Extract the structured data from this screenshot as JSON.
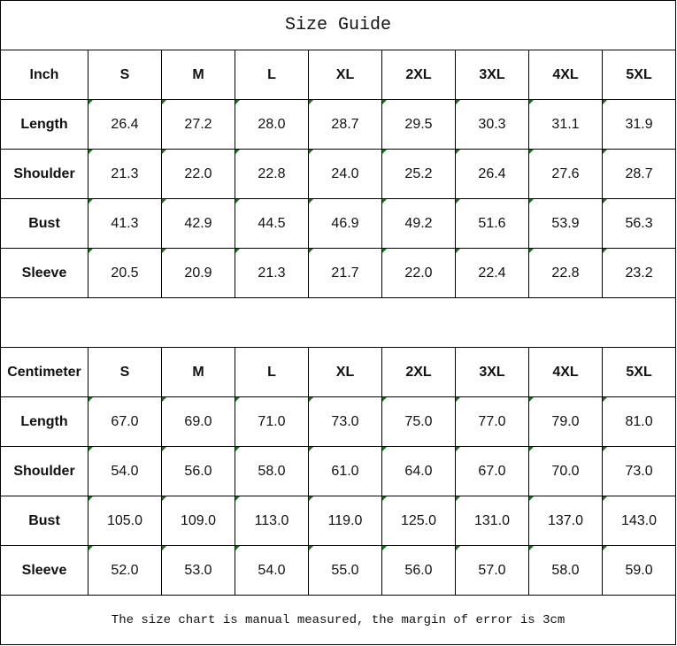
{
  "title": "Size Guide",
  "sizes": [
    "S",
    "M",
    "L",
    "XL",
    "2XL",
    "3XL",
    "4XL",
    "5XL"
  ],
  "tables": [
    {
      "unit": "Inch",
      "rows": [
        {
          "label": "Length",
          "values": [
            "26.4",
            "27.2",
            "28.0",
            "28.7",
            "29.5",
            "30.3",
            "31.1",
            "31.9"
          ]
        },
        {
          "label": "Shoulder",
          "values": [
            "21.3",
            "22.0",
            "22.8",
            "24.0",
            "25.2",
            "26.4",
            "27.6",
            "28.7"
          ]
        },
        {
          "label": "Bust",
          "values": [
            "41.3",
            "42.9",
            "44.5",
            "46.9",
            "49.2",
            "51.6",
            "53.9",
            "56.3"
          ]
        },
        {
          "label": "Sleeve",
          "values": [
            "20.5",
            "20.9",
            "21.3",
            "21.7",
            "22.0",
            "22.4",
            "22.8",
            "23.2"
          ]
        }
      ]
    },
    {
      "unit": "Centimeter",
      "rows": [
        {
          "label": "Length",
          "values": [
            "67.0",
            "69.0",
            "71.0",
            "73.0",
            "75.0",
            "77.0",
            "79.0",
            "81.0"
          ]
        },
        {
          "label": "Shoulder",
          "values": [
            "54.0",
            "56.0",
            "58.0",
            "61.0",
            "64.0",
            "67.0",
            "70.0",
            "73.0"
          ]
        },
        {
          "label": "Bust",
          "values": [
            "105.0",
            "109.0",
            "113.0",
            "119.0",
            "125.0",
            "131.0",
            "137.0",
            "143.0"
          ]
        },
        {
          "label": "Sleeve",
          "values": [
            "52.0",
            "53.0",
            "54.0",
            "55.0",
            "56.0",
            "57.0",
            "58.0",
            "59.0"
          ]
        }
      ]
    }
  ],
  "note": "The size chart is manual measured, the margin of error is 3cm",
  "colors": {
    "cell_marker": "#0a7d0a",
    "border": "#000000"
  }
}
